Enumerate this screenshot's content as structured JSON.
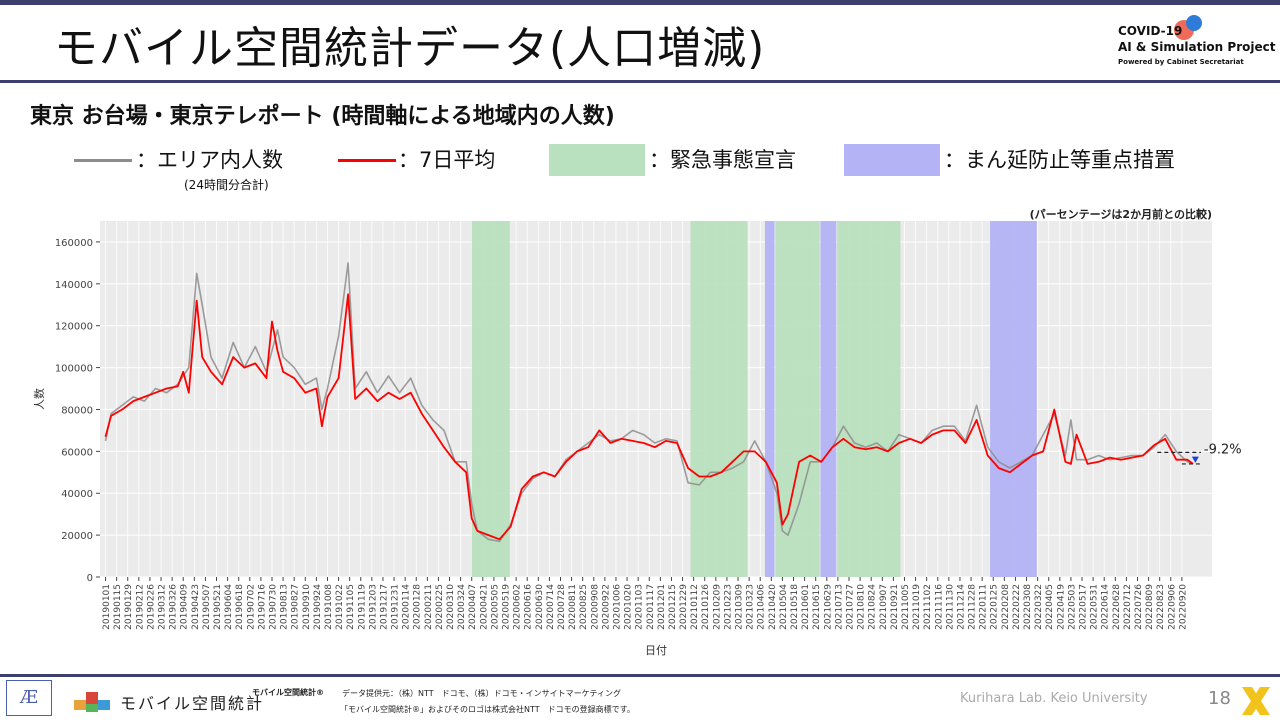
{
  "header": {
    "title": "モバイル空間統計データ(人口増減)",
    "logo_line1": "COVID-19",
    "logo_line2": "AI & Simulation Project",
    "logo_line3": "Powered by Cabinet Secretariat"
  },
  "subtitle": "東京 お台場・東京テレポート (時間軸による地域内の人数)",
  "legend": {
    "area_label": "：エリア内人数",
    "area_sub": "(24時間分合計)",
    "avg_label": "：7日平均",
    "emergency_label": "：緊急事態宣言",
    "prevention_label": "：まん延防止等重点措置",
    "colors": {
      "area": "#8c8c8c",
      "avg": "#ff0000",
      "emergency": "#b9e0bf",
      "prevention": "#b3b3f5",
      "panel": "#ebebeb"
    }
  },
  "chart_data": {
    "type": "line",
    "note": "(パーセンテージは2か月前との比較)",
    "xlabel": "日付",
    "ylabel": "人数",
    "ylim": [
      0,
      170000
    ],
    "xlim": [
      "2018-12-25",
      "2022-10-28"
    ],
    "y_ticks": [
      0,
      20000,
      40000,
      60000,
      80000,
      100000,
      120000,
      140000,
      160000
    ],
    "x_tick_labels": [
      "20190101",
      "20190115",
      "20190129",
      "20190212",
      "20190226",
      "20190312",
      "20190326",
      "20190409",
      "20190423",
      "20190507",
      "20190521",
      "20190604",
      "20190618",
      "20190702",
      "20190716",
      "20190730",
      "20190813",
      "20190827",
      "20190910",
      "20190924",
      "20191008",
      "20191022",
      "20191105",
      "20191119",
      "20191203",
      "20191217",
      "20191231",
      "20200114",
      "20200128",
      "20200211",
      "20200225",
      "20200310",
      "20200324",
      "20200407",
      "20200421",
      "20200505",
      "20200519",
      "20200602",
      "20200616",
      "20200630",
      "20200714",
      "20200728",
      "20200811",
      "20200825",
      "20200908",
      "20200922",
      "20201006",
      "20201020",
      "20201103",
      "20201117",
      "20201201",
      "20201215",
      "20201229",
      "20210112",
      "20210126",
      "20210209",
      "20210223",
      "20210309",
      "20210323",
      "20210406",
      "20210420",
      "20210504",
      "20210518",
      "20210601",
      "20210615",
      "20210629",
      "20210713",
      "20210727",
      "20210810",
      "20210824",
      "20210907",
      "20210921",
      "20211005",
      "20211019",
      "20211102",
      "20211116",
      "20211130",
      "20211214",
      "20211228",
      "20220111",
      "20220125",
      "20220208",
      "20220222",
      "20220308",
      "20220322",
      "20220405",
      "20220419",
      "20220503",
      "20220517",
      "20220531",
      "20220614",
      "20220628",
      "20220712",
      "20220726",
      "20220809",
      "20220823",
      "20220906",
      "20220920"
    ],
    "emergency_periods": [
      [
        "2020-04-07",
        "2020-05-25"
      ],
      [
        "2021-01-08",
        "2021-03-21"
      ],
      [
        "2021-04-25",
        "2021-06-20"
      ],
      [
        "2021-07-12",
        "2021-09-30"
      ]
    ],
    "prevention_periods": [
      [
        "2021-04-12",
        "2021-04-24"
      ],
      [
        "2021-06-21",
        "2021-07-11"
      ],
      [
        "2022-01-21",
        "2022-03-21"
      ]
    ],
    "series": [
      {
        "name": "エリア内人数",
        "color": "#8c8c8c",
        "x": [
          "2019-01-01",
          "2019-01-08",
          "2019-01-22",
          "2019-02-05",
          "2019-02-19",
          "2019-03-05",
          "2019-03-19",
          "2019-04-02",
          "2019-04-16",
          "2019-04-26",
          "2019-05-03",
          "2019-05-14",
          "2019-05-28",
          "2019-06-11",
          "2019-06-25",
          "2019-07-09",
          "2019-07-23",
          "2019-08-06",
          "2019-08-13",
          "2019-08-27",
          "2019-09-10",
          "2019-09-24",
          "2019-10-01",
          "2019-10-08",
          "2019-10-22",
          "2019-11-03",
          "2019-11-12",
          "2019-11-26",
          "2019-12-10",
          "2019-12-24",
          "2020-01-07",
          "2020-01-21",
          "2020-02-04",
          "2020-02-18",
          "2020-03-03",
          "2020-03-17",
          "2020-03-31",
          "2020-04-07",
          "2020-04-14",
          "2020-04-28",
          "2020-05-12",
          "2020-05-26",
          "2020-06-09",
          "2020-06-23",
          "2020-07-07",
          "2020-07-21",
          "2020-08-04",
          "2020-08-18",
          "2020-09-01",
          "2020-09-15",
          "2020-09-29",
          "2020-10-13",
          "2020-10-27",
          "2020-11-10",
          "2020-11-24",
          "2020-12-08",
          "2020-12-22",
          "2021-01-05",
          "2021-01-19",
          "2021-02-02",
          "2021-02-16",
          "2021-03-02",
          "2021-03-16",
          "2021-03-30",
          "2021-04-13",
          "2021-04-27",
          "2021-05-04",
          "2021-05-11",
          "2021-05-25",
          "2021-06-08",
          "2021-06-22",
          "2021-07-06",
          "2021-07-20",
          "2021-08-03",
          "2021-08-17",
          "2021-08-31",
          "2021-09-14",
          "2021-09-28",
          "2021-10-12",
          "2021-10-26",
          "2021-11-09",
          "2021-11-23",
          "2021-12-07",
          "2021-12-21",
          "2022-01-04",
          "2022-01-18",
          "2022-02-01",
          "2022-02-15",
          "2022-03-01",
          "2022-03-15",
          "2022-03-29",
          "2022-04-12",
          "2022-04-26",
          "2022-05-03",
          "2022-05-10",
          "2022-05-24",
          "2022-06-07",
          "2022-06-21",
          "2022-07-05",
          "2022-07-19",
          "2022-08-02",
          "2022-08-16",
          "2022-08-30",
          "2022-09-13",
          "2022-09-27",
          "2022-10-04"
        ],
        "values": [
          65000,
          78000,
          82000,
          86000,
          84000,
          90000,
          88000,
          92000,
          100000,
          145000,
          130000,
          105000,
          95000,
          112000,
          100000,
          110000,
          98000,
          118000,
          105000,
          100000,
          92000,
          95000,
          80000,
          90000,
          115000,
          150000,
          90000,
          98000,
          88000,
          96000,
          88000,
          95000,
          82000,
          75000,
          70000,
          55000,
          55000,
          35000,
          22000,
          18000,
          17000,
          25000,
          40000,
          47000,
          50000,
          48000,
          56000,
          60000,
          64000,
          68000,
          65000,
          66000,
          70000,
          68000,
          64000,
          66000,
          65000,
          45000,
          44000,
          50000,
          50000,
          52000,
          55000,
          65000,
          55000,
          40000,
          22000,
          20000,
          35000,
          55000,
          55000,
          62000,
          72000,
          64000,
          62000,
          64000,
          60000,
          68000,
          66000,
          64000,
          70000,
          72000,
          72000,
          65000,
          82000,
          62000,
          55000,
          52000,
          55000,
          58000,
          68000,
          78000,
          58000,
          75000,
          56000,
          56000,
          58000,
          56000,
          57000,
          58000,
          58000,
          62000,
          68000,
          60000,
          55000,
          54000
        ]
      },
      {
        "name": "7日平均",
        "color": "#ff0000",
        "x": [
          "2019-01-01",
          "2019-01-08",
          "2019-01-22",
          "2019-02-05",
          "2019-02-19",
          "2019-03-05",
          "2019-03-19",
          "2019-04-02",
          "2019-04-09",
          "2019-04-16",
          "2019-04-26",
          "2019-05-03",
          "2019-05-14",
          "2019-05-28",
          "2019-06-11",
          "2019-06-25",
          "2019-07-09",
          "2019-07-23",
          "2019-07-30",
          "2019-08-06",
          "2019-08-13",
          "2019-08-27",
          "2019-09-10",
          "2019-09-24",
          "2019-10-01",
          "2019-10-08",
          "2019-10-22",
          "2019-11-03",
          "2019-11-12",
          "2019-11-26",
          "2019-12-10",
          "2019-12-24",
          "2020-01-07",
          "2020-01-21",
          "2020-02-04",
          "2020-02-18",
          "2020-03-03",
          "2020-03-17",
          "2020-03-31",
          "2020-04-07",
          "2020-04-14",
          "2020-04-28",
          "2020-05-12",
          "2020-05-26",
          "2020-06-09",
          "2020-06-23",
          "2020-07-07",
          "2020-07-21",
          "2020-08-04",
          "2020-08-18",
          "2020-09-01",
          "2020-09-15",
          "2020-09-29",
          "2020-10-13",
          "2020-10-27",
          "2020-11-10",
          "2020-11-24",
          "2020-12-08",
          "2020-12-22",
          "2021-01-05",
          "2021-01-19",
          "2021-02-02",
          "2021-02-16",
          "2021-03-02",
          "2021-03-16",
          "2021-03-30",
          "2021-04-13",
          "2021-04-27",
          "2021-05-04",
          "2021-05-11",
          "2021-05-25",
          "2021-06-08",
          "2021-06-22",
          "2021-07-06",
          "2021-07-20",
          "2021-08-03",
          "2021-08-17",
          "2021-08-31",
          "2021-09-14",
          "2021-09-28",
          "2021-10-12",
          "2021-10-26",
          "2021-11-09",
          "2021-11-23",
          "2021-12-07",
          "2021-12-21",
          "2022-01-04",
          "2022-01-18",
          "2022-02-01",
          "2022-02-15",
          "2022-03-01",
          "2022-03-15",
          "2022-03-29",
          "2022-04-12",
          "2022-04-26",
          "2022-05-03",
          "2022-05-10",
          "2022-05-24",
          "2022-06-07",
          "2022-06-21",
          "2022-07-05",
          "2022-07-19",
          "2022-08-02",
          "2022-08-16",
          "2022-08-30",
          "2022-09-13",
          "2022-09-27",
          "2022-10-04"
        ],
        "values": [
          67000,
          77000,
          80000,
          84000,
          86000,
          88000,
          90000,
          91000,
          98000,
          88000,
          132000,
          105000,
          98000,
          92000,
          105000,
          100000,
          102000,
          95000,
          122000,
          108000,
          98000,
          95000,
          88000,
          90000,
          72000,
          86000,
          95000,
          135000,
          85000,
          90000,
          84000,
          88000,
          85000,
          88000,
          78000,
          70000,
          62000,
          55000,
          50000,
          28000,
          22000,
          20000,
          18000,
          24000,
          42000,
          48000,
          50000,
          48000,
          55000,
          60000,
          62000,
          70000,
          64000,
          66000,
          65000,
          64000,
          62000,
          65000,
          64000,
          52000,
          48000,
          48000,
          50000,
          55000,
          60000,
          60000,
          55000,
          45000,
          25000,
          30000,
          55000,
          58000,
          55000,
          62000,
          66000,
          62000,
          61000,
          62000,
          60000,
          64000,
          66000,
          64000,
          68000,
          70000,
          70000,
          64000,
          75000,
          58000,
          52000,
          50000,
          54000,
          58000,
          60000,
          80000,
          55000,
          54000,
          68000,
          54000,
          55000,
          57000,
          56000,
          57000,
          58000,
          63000,
          66000,
          56000,
          56000,
          54000
        ]
      }
    ],
    "annotation": "-9.2%"
  },
  "footer": {
    "brand": "モバイル空間統計",
    "note1": "モバイル空間統計®",
    "note2": "データ提供元：（株）NTT　ドコモ、（株）ドコモ・インサイトマーケティング",
    "note3": "「モバイル空間統計®」およびそのロゴは株式会社NTT　ドコモの登録商標です。",
    "lab": "Kurihara Lab. Keio University",
    "page": "18"
  }
}
